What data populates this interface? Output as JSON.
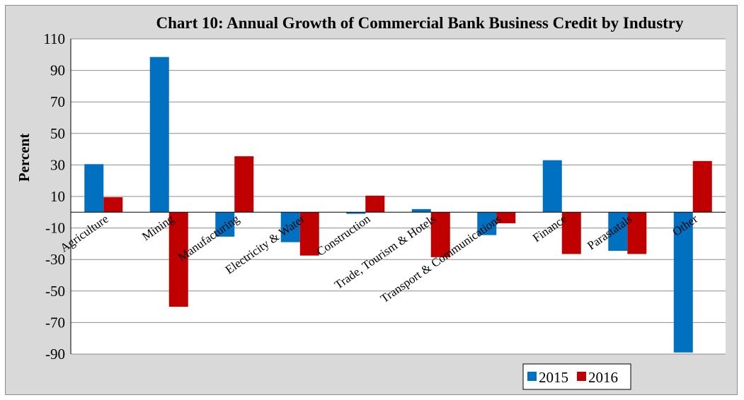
{
  "chart_data": {
    "type": "bar",
    "title": "Chart 10: Annual Growth of Commercial Bank Business Credit by  Industry",
    "xlabel": "",
    "ylabel": "Percent",
    "ylim": [
      -90,
      110
    ],
    "yticks": [
      110,
      90,
      70,
      50,
      30,
      10,
      -10,
      -30,
      -50,
      -70,
      -90
    ],
    "grid": true,
    "legend_position": "bottom-right",
    "categories": [
      "Agriculture",
      "Mining",
      "Manufacturing",
      "Electricity & Water",
      "Construction",
      "Trade, Tourism & Hotels",
      "Transport & Communications",
      "Finance",
      "Parastatals",
      "Other"
    ],
    "series": [
      {
        "name": "2015",
        "color": "#0070c0",
        "values": [
          30.5,
          98.5,
          -15.5,
          -19,
          -1,
          2,
          -14.5,
          33,
          -24.5,
          -89
        ]
      },
      {
        "name": "2016",
        "color": "#c00000",
        "values": [
          9.5,
          -60,
          35.5,
          -27.5,
          10.5,
          -28.5,
          -7,
          -26.5,
          -26.5,
          32.5
        ]
      }
    ]
  }
}
